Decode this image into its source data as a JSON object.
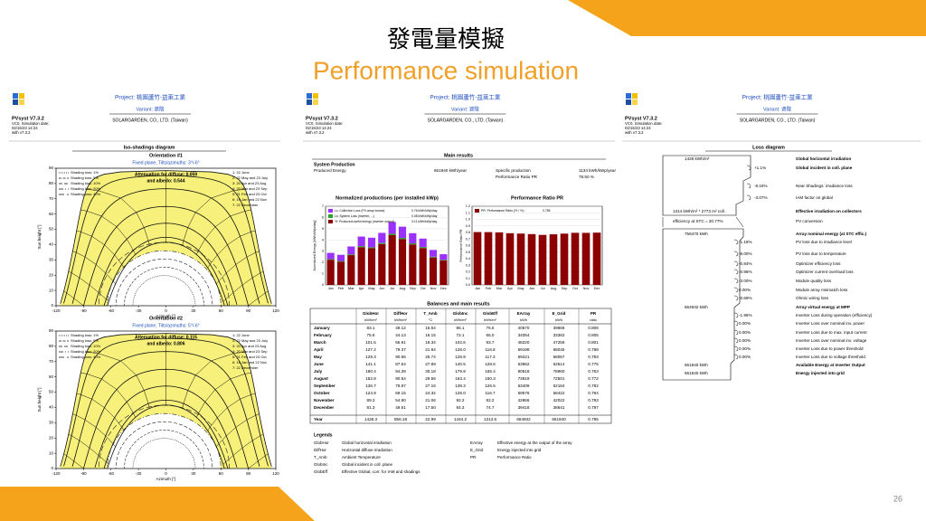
{
  "slide": {
    "title": "發電量模擬",
    "subtitle": "Performance simulation",
    "page_number": "26"
  },
  "report_header": {
    "software": "PVsyst V7.3.2",
    "meta": [
      "VC0, Simulation date:",
      "02/15/23 14:24",
      "with v7.3.2"
    ],
    "project": "Project: 桃園蘆竹-益萊工業",
    "variant": "Variant: 遮陰",
    "company": "SOLARGARDEN, CO., LTD. (Taiwan)"
  },
  "iso_shadings": {
    "title": "Iso-shadings diagram"
  },
  "main_results": {
    "title": "Main results",
    "system_production": "System Production",
    "rows": [
      [
        "Produced Energy",
        "651940 kWh/year"
      ],
      [
        "Specific production",
        "1134 kWh/kWp/year"
      ],
      [
        "Performance Ratio PR",
        "78.50 %"
      ]
    ]
  },
  "balances": {
    "title": "Balances and main results",
    "columns": [
      "GlobHor",
      "DiffHor",
      "T_Amb",
      "GlobInc",
      "GlobEff",
      "EArray",
      "E_Grid",
      "PR"
    ],
    "units": [
      "kWh/m²",
      "kWh/m²",
      "°C",
      "kWh/m²",
      "kWh/m²",
      "kWh",
      "kWh",
      "ratio"
    ],
    "rows": [
      [
        "January",
        "83.1",
        "49.12",
        "15.54",
        "86.1",
        "76.6",
        "40670",
        "39866",
        "0.806"
      ],
      [
        "February",
        "75.6",
        "44.13",
        "16.15",
        "72.1",
        "65.0",
        "34054",
        "33362",
        "0.805"
      ],
      [
        "March",
        "101.5",
        "66.91",
        "18.34",
        "102.6",
        "93.7",
        "48220",
        "47256",
        "0.801"
      ],
      [
        "April",
        "127.2",
        "79.37",
        "21.94",
        "128.0",
        "116.8",
        "59198",
        "58045",
        "0.788"
      ],
      [
        "May",
        "129.3",
        "90.65",
        "25.74",
        "128.9",
        "117.3",
        "59221",
        "58067",
        "0.783"
      ],
      [
        "June",
        "141.1",
        "87.54",
        "27.89",
        "140.5",
        "128.6",
        "63862",
        "62614",
        "0.775"
      ],
      [
        "July",
        "180.4",
        "94.39",
        "30.18",
        "179.9",
        "165.4",
        "80518",
        "78960",
        "0.763"
      ],
      [
        "August",
        "162.8",
        "90.54",
        "29.56",
        "163.4",
        "150.3",
        "73919",
        "72501",
        "0.772"
      ],
      [
        "September",
        "136.7",
        "79.97",
        "27.16",
        "138.3",
        "126.5",
        "63409",
        "62184",
        "0.782"
      ],
      [
        "October",
        "124.9",
        "69.15",
        "24.32",
        "128.0",
        "116.7",
        "59576",
        "58422",
        "0.794"
      ],
      [
        "November",
        "89.3",
        "54.90",
        "21.06",
        "92.2",
        "82.2",
        "42866",
        "42022",
        "0.793"
      ],
      [
        "December",
        "81.3",
        "49.51",
        "17.50",
        "84.3",
        "74.7",
        "39418",
        "38641",
        "0.797"
      ],
      [
        "Year",
        "1428.3",
        "856.18",
        "22.99",
        "1444.2",
        "1313.6",
        "664932",
        "651940",
        "0.785"
      ]
    ]
  },
  "legends": {
    "title": "Legends",
    "items": [
      [
        "GlobHor",
        "Global horizontal irradiation"
      ],
      [
        "DiffHor",
        "Horizontal diffuse irradiation"
      ],
      [
        "T_Amb",
        "Ambient Temperature"
      ],
      [
        "GlobInc",
        "Global incident in coll. plane"
      ],
      [
        "GlobEff",
        "Effective Global, corr. for IAM and shadings"
      ],
      [
        "EArray",
        "Effective energy at the output of the array"
      ],
      [
        "E_Grid",
        "Energy injected into grid"
      ],
      [
        "PR",
        "Performance Ratio"
      ]
    ]
  },
  "loss_diagram": {
    "title": "Loss diagram",
    "items": [
      {
        "value": "1428 kWh/m²",
        "label": "Global horizontal irradiation",
        "emphasis": true
      },
      {
        "value": "+1.1%",
        "label": "Global incident in coll. plane",
        "emphasis": true
      },
      {
        "value": "-8.15%",
        "label": "Near Shadings: irradiance loss"
      },
      {
        "value": "-3.07%",
        "label": "IAM factor on global"
      },
      {
        "value": "1314 kWh/m² * 2773 m² coll.",
        "label": "Effective irradiation on collectors",
        "emphasis": true
      },
      {
        "value": "efficiency at STC = 20.77%",
        "label": "PV conversion"
      },
      {
        "value": "756470 kWh",
        "label": "Array nominal energy (at STC effic.)",
        "emphasis": true
      },
      {
        "value": "-1.16%",
        "label": "PV loss due to irradiance level"
      },
      {
        "value": "-8.00%",
        "label": "PV loss due to temperature"
      },
      {
        "value": "-0.84%",
        "label": "Optimizer efficiency loss"
      },
      {
        "value": "-0.96%",
        "label": "Optimizer current overload loss"
      },
      {
        "value": "-3.00%",
        "label": "Module quality loss"
      },
      {
        "value": "0.00%",
        "label": "Module array mismatch loss"
      },
      {
        "value": "-0.69%",
        "label": "Ohmic wiring loss"
      },
      {
        "value": "664932 kWh",
        "label": "Array virtual energy at MPP",
        "emphasis": true
      },
      {
        "value": "-1.95%",
        "label": "Inverter Loss during operation (efficiency)"
      },
      {
        "value": "0.00%",
        "label": "Inverter Loss over nominal inv. power"
      },
      {
        "value": "0.00%",
        "label": "Inverter Loss due to max. input current"
      },
      {
        "value": "0.00%",
        "label": "Inverter Loss over nominal inv. voltage"
      },
      {
        "value": "0.00%",
        "label": "Inverter Loss due to power threshold"
      },
      {
        "value": "0.00%",
        "label": "Inverter Loss due to voltage threshold"
      },
      {
        "value": "651940 kWh",
        "label": "Available Energy at Inverter Output",
        "emphasis": true
      },
      {
        "value": "651940 kWh",
        "label": "Energy injected into grid",
        "emphasis": true
      }
    ]
  },
  "chart_data": [
    {
      "type": "iso-shading",
      "title": "Orientation #1",
      "subtitle": "Fixed plane, Tilts/azimuths: 3°/-6°",
      "annotation": [
        "Attenuation for diffuse: 0.059",
        "and albedo: 0.544"
      ],
      "xlabel": "Azimuth [°]",
      "ylabel": "Sun height [°]",
      "xlim": [
        -120,
        120
      ],
      "xticks": [
        -120,
        -90,
        -60,
        -30,
        0,
        30,
        60,
        90,
        120
      ],
      "ylim": [
        0,
        90
      ],
      "yticks": [
        0,
        10,
        20,
        30,
        40,
        50,
        60,
        70,
        80,
        90
      ],
      "shading_losses": [
        "Shading loss: 1%",
        "Shading loss: 5%",
        "Shading loss: 10%",
        "Shading loss: 20%",
        "Shading loss: 40%"
      ],
      "sun_paths": [
        "1: 22 June",
        "2: 22 May and 23 July",
        "3: 20 Apr and 23 Aug",
        "4: 20 Mar and 23 Sep",
        "5: 21 Feb and 23 Oct",
        "6: 19 Jan and 22 Nov",
        "7: 22 December"
      ]
    },
    {
      "type": "iso-shading",
      "title": "Orientation #2",
      "subtitle": "Fixed plane, Tilts/azimuths: 5°/-6°",
      "annotation": [
        "Attenuation for diffuse: 0.115",
        "and albedo: 0.806"
      ],
      "xlabel": "Azimuth [°]",
      "ylabel": "Sun height [°]",
      "xlim": [
        -120,
        120
      ],
      "xticks": [
        -120,
        -90,
        -60,
        -30,
        0,
        30,
        60,
        90,
        120
      ],
      "ylim": [
        0,
        90
      ],
      "yticks": [
        0,
        10,
        20,
        30,
        40,
        50,
        60,
        70,
        80,
        90
      ],
      "shading_losses": [
        "Shading loss: 1%",
        "Shading loss: 5%",
        "Shading loss: 10%",
        "Shading loss: 20%",
        "Shading loss: 40%"
      ],
      "sun_paths": [
        "1: 22 June",
        "2: 22 May and 23 July",
        "3: 20 Apr and 23 Aug",
        "4: 20 Mar and 23 Sep",
        "5: 21 Feb and 23 Oct",
        "6: 19 Jan and 22 Nov",
        "7: 22 December"
      ]
    },
    {
      "type": "bar",
      "stacked": true,
      "title": "Normalized productions (per installed kWp)",
      "ylabel": "Normalized Energy [kWh/kWp/day]",
      "categories": [
        "Jan",
        "Feb",
        "Mar",
        "Apr",
        "May",
        "Jun",
        "Jul",
        "Aug",
        "Sep",
        "Oct",
        "Nov",
        "Dec"
      ],
      "ylim": [
        0,
        7
      ],
      "yticks": [
        0,
        1,
        2,
        3,
        4,
        5,
        6,
        7
      ],
      "series": [
        {
          "name": "Lc: Collection Loss (PV-array losses)",
          "summary": "0.76 kWh/kWp/day",
          "color": "#9b30ff",
          "values": [
            0.55,
            0.55,
            0.7,
            0.85,
            0.85,
            0.9,
            1.05,
            1.0,
            0.9,
            0.75,
            0.6,
            0.5
          ]
        },
        {
          "name": "Ls: System Loss (inverter, ...)",
          "summary": "0.08 kWh/kWp/day",
          "color": "#2ca02c",
          "values": [
            0.06,
            0.06,
            0.07,
            0.09,
            0.09,
            0.1,
            0.12,
            0.11,
            0.1,
            0.09,
            0.07,
            0.06
          ]
        },
        {
          "name": "Yf: Produced useful energy (inverter output)",
          "summary": "3.11 kWh/kWp/day",
          "color": "#8b0000",
          "values": [
            2.24,
            2.07,
            2.65,
            3.36,
            3.26,
            3.63,
            4.43,
            4.07,
            3.6,
            3.28,
            2.44,
            2.17
          ]
        }
      ]
    },
    {
      "type": "bar",
      "title": "Performance Ratio PR",
      "ylabel": "Performance Ratio PR",
      "categories": [
        "Jan",
        "Feb",
        "Mar",
        "Apr",
        "May",
        "Jun",
        "Jul",
        "Aug",
        "Sep",
        "Oct",
        "Nov",
        "Dec"
      ],
      "ylim": [
        0,
        1.2
      ],
      "yticks": [
        {
          "value": 0,
          "label": "0.0"
        },
        0.1,
        0.2,
        0.3,
        0.4,
        0.5,
        0.6,
        0.7,
        0.8,
        0.9,
        {
          "value": 1,
          "label": "1.0"
        },
        1.1,
        1.2
      ],
      "series": [
        {
          "name": "PR: Performance Ratio (Yf / Yr) :",
          "summary": "0.785",
          "color": "#8b0000",
          "values": [
            0.806,
            0.805,
            0.801,
            0.788,
            0.783,
            0.775,
            0.763,
            0.772,
            0.782,
            0.794,
            0.793,
            0.797
          ]
        }
      ]
    }
  ]
}
